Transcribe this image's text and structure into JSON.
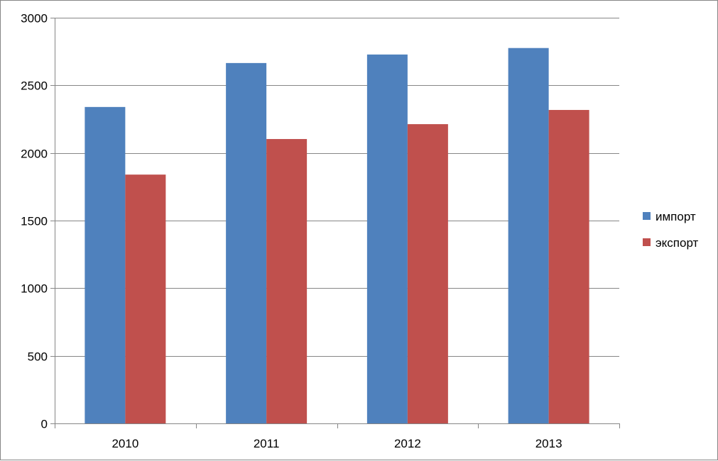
{
  "chart_data": {
    "type": "bar",
    "title": "",
    "xlabel": "",
    "ylabel": "",
    "categories": [
      "2010",
      "2011",
      "2012",
      "2013"
    ],
    "series": [
      {
        "name": "импорт",
        "color": "#4F81BD",
        "values": [
          2340,
          2665,
          2728,
          2776
        ]
      },
      {
        "name": "экспорт",
        "color": "#C0504D",
        "values": [
          1840,
          2103,
          2213,
          2318
        ]
      }
    ],
    "ylim": [
      0,
      3000
    ],
    "yticks": [
      0,
      500,
      1000,
      1500,
      2000,
      2500,
      3000
    ],
    "grid": true,
    "legend_position": "right"
  }
}
